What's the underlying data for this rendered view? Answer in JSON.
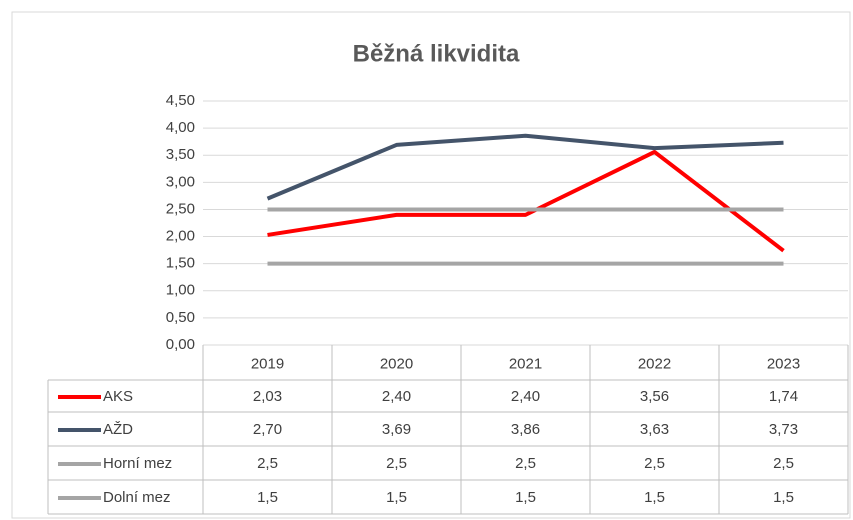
{
  "chart_data": {
    "type": "line",
    "title": "Běžná likvidita",
    "categories": [
      "2019",
      "2020",
      "2021",
      "2022",
      "2023"
    ],
    "series": [
      {
        "name": "AKS",
        "color": "#ff0000",
        "values": [
          2.03,
          2.4,
          2.4,
          3.56,
          1.74
        ],
        "value_labels": [
          "2,03",
          "2,40",
          "2,40",
          "3,56",
          "1,74"
        ]
      },
      {
        "name": "AŽD",
        "color": "#44546a",
        "values": [
          2.7,
          3.69,
          3.86,
          3.63,
          3.73
        ],
        "value_labels": [
          "2,70",
          "3,69",
          "3,86",
          "3,63",
          "3,73"
        ]
      },
      {
        "name": "Horní mez",
        "color": "#a5a5a5",
        "values": [
          2.5,
          2.5,
          2.5,
          2.5,
          2.5
        ],
        "value_labels": [
          "2,5",
          "2,5",
          "2,5",
          "2,5",
          "2,5"
        ]
      },
      {
        "name": "Dolní mez",
        "color": "#a5a5a5",
        "values": [
          1.5,
          1.5,
          1.5,
          1.5,
          1.5
        ],
        "value_labels": [
          "1,5",
          "1,5",
          "1,5",
          "1,5",
          "1,5"
        ]
      }
    ],
    "ylim": [
      0,
      4.5
    ],
    "yticks": [
      {
        "value": 0,
        "label": "0,00"
      },
      {
        "value": 0.5,
        "label": "0,50"
      },
      {
        "value": 1,
        "label": "1,00"
      },
      {
        "value": 1.5,
        "label": "1,50"
      },
      {
        "value": 2,
        "label": "2,00"
      },
      {
        "value": 2.5,
        "label": "2,50"
      },
      {
        "value": 3,
        "label": "3,00"
      },
      {
        "value": 3.5,
        "label": "3,50"
      },
      {
        "value": 4,
        "label": "4,00"
      },
      {
        "value": 4.5,
        "label": "4,50"
      }
    ],
    "grid": true
  }
}
